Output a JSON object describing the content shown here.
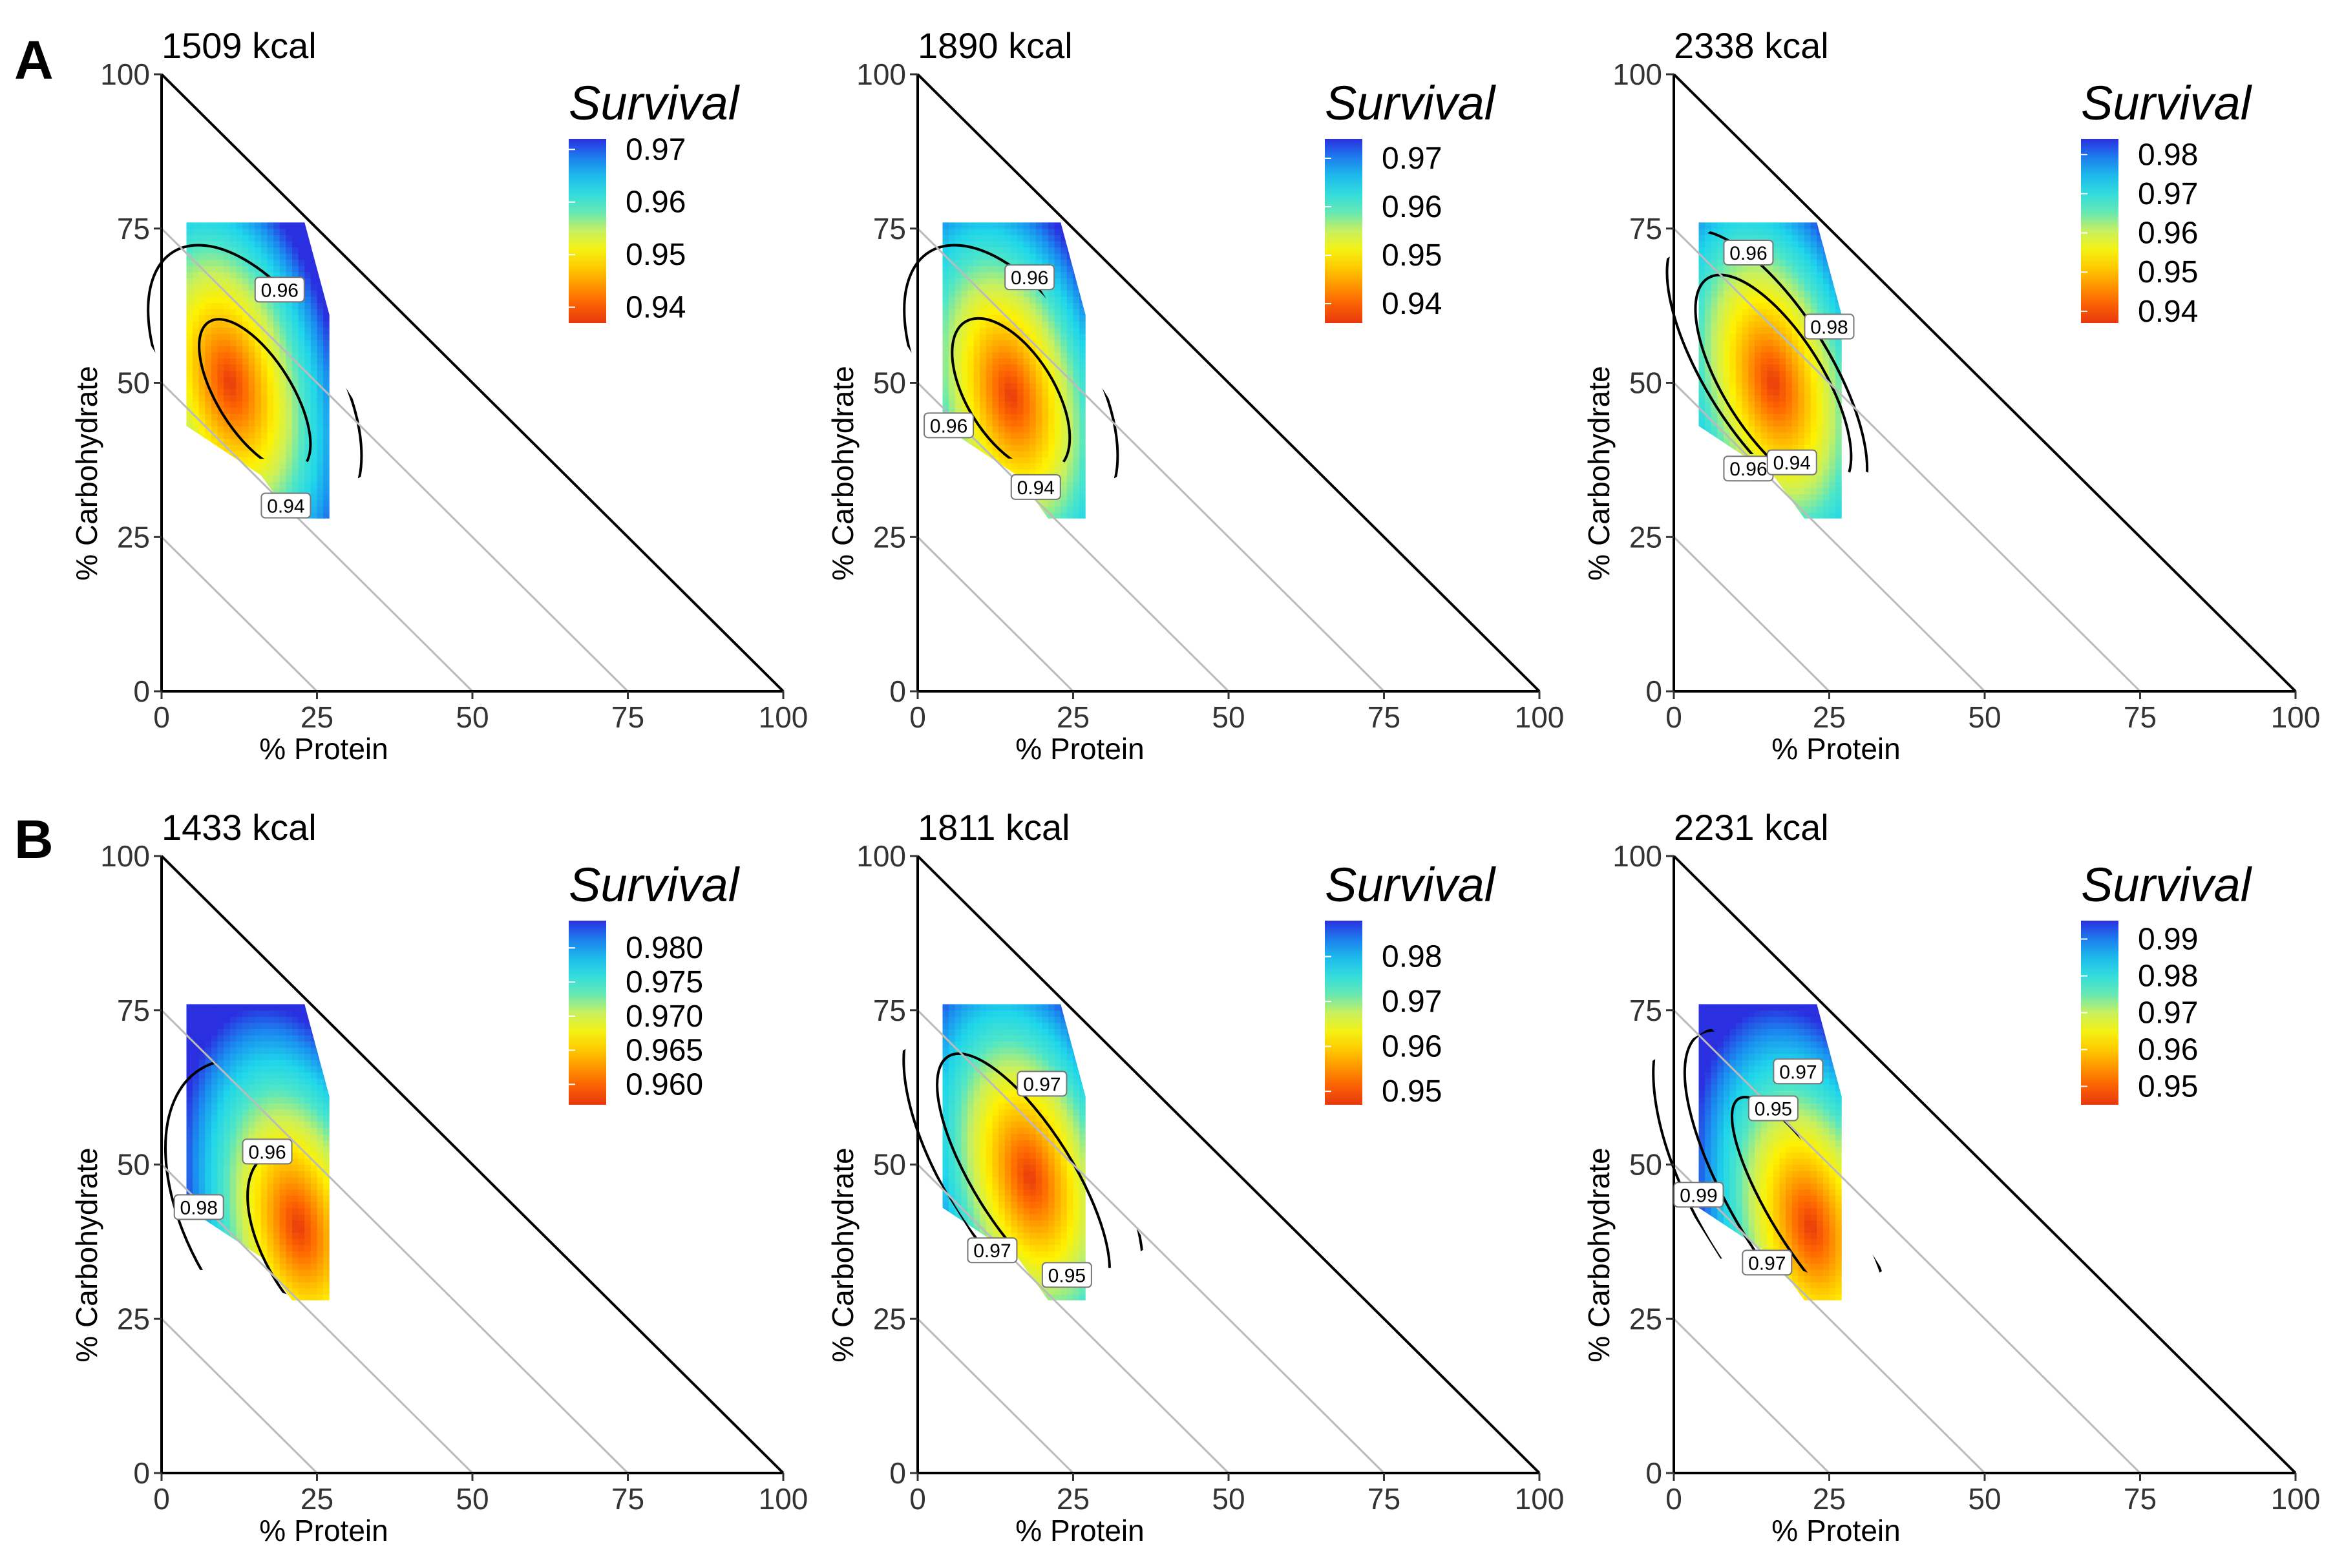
{
  "panels": [
    {
      "letter": "A"
    },
    {
      "letter": "B"
    }
  ],
  "colors": {
    "palette": [
      "#e8380e",
      "#ff6a00",
      "#ffb000",
      "#fff200",
      "#c8f060",
      "#4fe6c8",
      "#1fd6ea",
      "#1a90f0",
      "#2a30e0"
    ],
    "axis": "#000000",
    "guide": "#bbbbbb",
    "contour": "#000000"
  },
  "chart_data": [
    {
      "type": "heatmap",
      "panel": "A",
      "title": "1509 kcal",
      "xlabel": "% Protein",
      "ylabel": "% Carbohydrate",
      "xticks": [
        "0",
        "25",
        "50",
        "75",
        "100"
      ],
      "yticks": [
        "0",
        "25",
        "50",
        "75",
        "100"
      ],
      "xlim": [
        0,
        100
      ],
      "ylim": [
        0,
        100
      ],
      "legend_title": "Survival",
      "legend_ticks": [
        "0.97",
        "0.96",
        "0.95",
        "0.94"
      ],
      "value_range": [
        0.937,
        0.972
      ],
      "field": {
        "p0": 11,
        "c0": 50,
        "min": 0.937,
        "max": 0.972
      },
      "region": {
        "x": [
          4,
          27
        ],
        "y": [
          28,
          76
        ]
      },
      "contour_labels": [
        {
          "text": "0.96",
          "x": 19,
          "y": 65
        },
        {
          "text": "0.94",
          "x": 20,
          "y": 30
        }
      ],
      "contours": [
        {
          "level": 0.94,
          "cx": 15,
          "cy": 48,
          "rx": 6,
          "ry": 14
        },
        {
          "level": 0.96,
          "cx": 15,
          "cy": 50,
          "rx": 13,
          "ry": 25
        }
      ]
    },
    {
      "type": "heatmap",
      "panel": "A",
      "title": "1890 kcal",
      "xlabel": "% Protein",
      "ylabel": "% Carbohydrate",
      "xticks": [
        "0",
        "25",
        "50",
        "75",
        "100"
      ],
      "yticks": [
        "0",
        "25",
        "50",
        "75",
        "100"
      ],
      "xlim": [
        0,
        100
      ],
      "ylim": [
        0,
        100
      ],
      "legend_title": "Survival",
      "legend_ticks": [
        "0.97",
        "0.96",
        "0.95",
        "0.94"
      ],
      "value_range": [
        0.936,
        0.974
      ],
      "field": {
        "p0": 15,
        "c0": 48,
        "min": 0.936,
        "max": 0.974
      },
      "region": {
        "x": [
          4,
          27
        ],
        "y": [
          28,
          76
        ]
      },
      "contour_labels": [
        {
          "text": "0.96",
          "x": 18,
          "y": 67
        },
        {
          "text": "0.96",
          "x": 5,
          "y": 43
        },
        {
          "text": "0.94",
          "x": 19,
          "y": 33
        }
      ],
      "contours": [
        {
          "level": 0.94,
          "cx": 15,
          "cy": 48,
          "rx": 7,
          "ry": 14
        },
        {
          "level": 0.96,
          "cx": 15,
          "cy": 50,
          "rx": 13,
          "ry": 25
        }
      ]
    },
    {
      "type": "heatmap",
      "panel": "A",
      "title": "2338 kcal",
      "xlabel": "% Protein",
      "ylabel": "% Carbohydrate",
      "xticks": [
        "0",
        "25",
        "50",
        "75",
        "100"
      ],
      "yticks": [
        "0",
        "25",
        "50",
        "75",
        "100"
      ],
      "xlim": [
        0,
        100
      ],
      "ylim": [
        0,
        100
      ],
      "legend_title": "Survival",
      "legend_ticks": [
        "0.98",
        "0.97",
        "0.96",
        "0.95",
        "0.94"
      ],
      "value_range": [
        0.937,
        0.984
      ],
      "field": {
        "p0": 16,
        "c0": 50,
        "min": 0.937,
        "max": 0.984
      },
      "region": {
        "x": [
          4,
          27
        ],
        "y": [
          28,
          76
        ]
      },
      "contour_labels": [
        {
          "text": "0.96",
          "x": 12,
          "y": 71
        },
        {
          "text": "0.98",
          "x": 25,
          "y": 59
        },
        {
          "text": "0.96",
          "x": 12,
          "y": 36
        },
        {
          "text": "0.94",
          "x": 19,
          "y": 37
        }
      ],
      "contours": [
        {
          "level": 0.94,
          "cx": 16,
          "cy": 50,
          "rx": 8,
          "ry": 20
        },
        {
          "level": 0.96,
          "cx": 15,
          "cy": 52,
          "rx": 10,
          "ry": 26
        }
      ]
    },
    {
      "type": "heatmap",
      "panel": "B",
      "title": "1433 kcal",
      "xlabel": "% Protein",
      "ylabel": "% Carbohydrate",
      "xticks": [
        "0",
        "25",
        "50",
        "75",
        "100"
      ],
      "yticks": [
        "0",
        "25",
        "50",
        "75",
        "100"
      ],
      "xlim": [
        0,
        100
      ],
      "ylim": [
        0,
        100
      ],
      "legend_title": "Survival",
      "legend_ticks": [
        "0.980",
        "0.975",
        "0.970",
        "0.965",
        "0.960"
      ],
      "value_range": [
        0.957,
        0.984
      ],
      "field": {
        "p0": 22,
        "c0": 40,
        "min": 0.957,
        "max": 0.984
      },
      "region": {
        "x": [
          4,
          27
        ],
        "y": [
          28,
          76
        ]
      },
      "contour_labels": [
        {
          "text": "0.96",
          "x": 17,
          "y": 52
        },
        {
          "text": "0.98",
          "x": 6,
          "y": 43
        }
      ],
      "contours": [
        {
          "level": 0.98,
          "cx": 22,
          "cy": 40,
          "rx": 17,
          "ry": 30
        },
        {
          "level": 0.96,
          "cx": 26,
          "cy": 36,
          "rx": 9,
          "ry": 18
        }
      ]
    },
    {
      "type": "heatmap",
      "panel": "B",
      "title": "1811 kcal",
      "xlabel": "% Protein",
      "ylabel": "% Carbohydrate",
      "xticks": [
        "0",
        "25",
        "50",
        "75",
        "100"
      ],
      "yticks": [
        "0",
        "25",
        "50",
        "75",
        "100"
      ],
      "xlim": [
        0,
        100
      ],
      "ylim": [
        0,
        100
      ],
      "legend_title": "Survival",
      "legend_ticks": [
        "0.98",
        "0.97",
        "0.96",
        "0.95"
      ],
      "value_range": [
        0.947,
        0.988
      ],
      "field": {
        "p0": 18,
        "c0": 48,
        "min": 0.947,
        "max": 0.988
      },
      "region": {
        "x": [
          4,
          27
        ],
        "y": [
          28,
          76
        ]
      },
      "contour_labels": [
        {
          "text": "0.97",
          "x": 20,
          "y": 63
        },
        {
          "text": "0.97",
          "x": 12,
          "y": 36
        },
        {
          "text": "0.95",
          "x": 24,
          "y": 32
        }
      ],
      "contours": [
        {
          "level": 0.95,
          "cx": 17,
          "cy": 48,
          "rx": 8,
          "ry": 23
        },
        {
          "level": 0.97,
          "cx": 17,
          "cy": 50,
          "rx": 13,
          "ry": 30
        }
      ]
    },
    {
      "type": "heatmap",
      "panel": "B",
      "title": "2231 kcal",
      "xlabel": "% Protein",
      "ylabel": "% Carbohydrate",
      "xticks": [
        "0",
        "25",
        "50",
        "75",
        "100"
      ],
      "yticks": [
        "0",
        "25",
        "50",
        "75",
        "100"
      ],
      "xlim": [
        0,
        100
      ],
      "ylim": [
        0,
        100
      ],
      "legend_title": "Survival",
      "legend_ticks": [
        "0.99",
        "0.98",
        "0.97",
        "0.96",
        "0.95"
      ],
      "value_range": [
        0.945,
        0.995
      ],
      "field": {
        "p0": 22,
        "c0": 40,
        "min": 0.945,
        "max": 0.995
      },
      "region": {
        "x": [
          4,
          27
        ],
        "y": [
          28,
          76
        ]
      },
      "contour_labels": [
        {
          "text": "0.97",
          "x": 20,
          "y": 65
        },
        {
          "text": "0.95",
          "x": 16,
          "y": 59
        },
        {
          "text": "0.99",
          "x": 4,
          "y": 45
        },
        {
          "text": "0.97",
          "x": 15,
          "y": 34
        }
      ],
      "contours": [
        {
          "level": 0.95,
          "cx": 22,
          "cy": 42,
          "rx": 6,
          "ry": 22
        },
        {
          "level": 0.97,
          "cx": 21,
          "cy": 44,
          "rx": 11,
          "ry": 32
        },
        {
          "level": 0.99,
          "cx": 20,
          "cy": 45,
          "rx": 16,
          "ry": 36
        }
      ]
    }
  ]
}
